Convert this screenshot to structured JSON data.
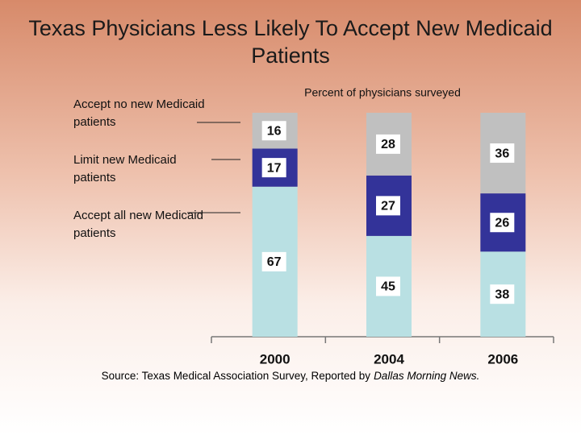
{
  "chart_data": {
    "type": "stacked_bar",
    "title": "Texas Physicians Less Likely To Accept New Medicaid Patients",
    "subtitle": "Percent of physicians surveyed",
    "source": "Source: Texas Medical Association Survey, Reported by",
    "source_publication": "Dallas Morning News.",
    "categories": [
      "2000",
      "2004",
      "2006"
    ],
    "series": [
      {
        "name": "Accept all new Medicaid patients",
        "color": "#b9e0e3",
        "values": [
          67,
          45,
          38
        ]
      },
      {
        "name": "Limit new Medicaid patients",
        "color": "#333399",
        "values": [
          17,
          27,
          26
        ]
      },
      {
        "name": "Accept no new Medicaid patients",
        "color": "#c0c0c0",
        "values": [
          16,
          28,
          36
        ]
      }
    ],
    "ylim": [
      0,
      100
    ]
  }
}
